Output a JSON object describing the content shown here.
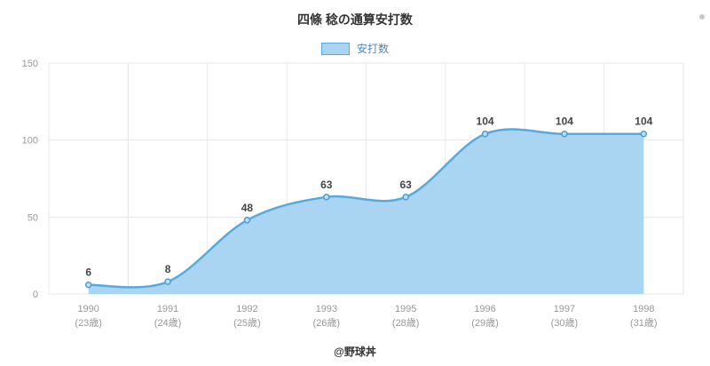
{
  "page": {
    "title": "四條 稔の通算安打数",
    "footer": "@野球丼"
  },
  "legend": {
    "label": "安打数"
  },
  "chart_data": {
    "type": "area",
    "title": "四條 稔の通算安打数",
    "legend_entries": [
      "安打数"
    ],
    "legend_position": "top",
    "grid": true,
    "categories": [
      {
        "label": "1990",
        "sublabel": "(23歳)"
      },
      {
        "label": "1991",
        "sublabel": "(24歳)"
      },
      {
        "label": "1992",
        "sublabel": "(25歳)"
      },
      {
        "label": "1993",
        "sublabel": "(26歳)"
      },
      {
        "label": "1995",
        "sublabel": "(28歳)"
      },
      {
        "label": "1996",
        "sublabel": "(29歳)"
      },
      {
        "label": "1997",
        "sublabel": "(30歳)"
      },
      {
        "label": "1998",
        "sublabel": "(31歳)"
      }
    ],
    "values": [
      6,
      8,
      48,
      63,
      63,
      104,
      104,
      104
    ],
    "xlabel": "",
    "ylabel": "",
    "ylim": [
      0,
      150
    ],
    "yticks": [
      0,
      50,
      100,
      150
    ],
    "colors": {
      "fill": "#A9D4F2",
      "line": "#57A9DE",
      "point_fill": "#BCDFF6",
      "point_stroke": "#4D9FD6",
      "data_label": "#444444",
      "axis_text": "#999999",
      "grid": "#E7E7E7",
      "legend_text": "#4A86C6",
      "title": "#333333"
    }
  }
}
